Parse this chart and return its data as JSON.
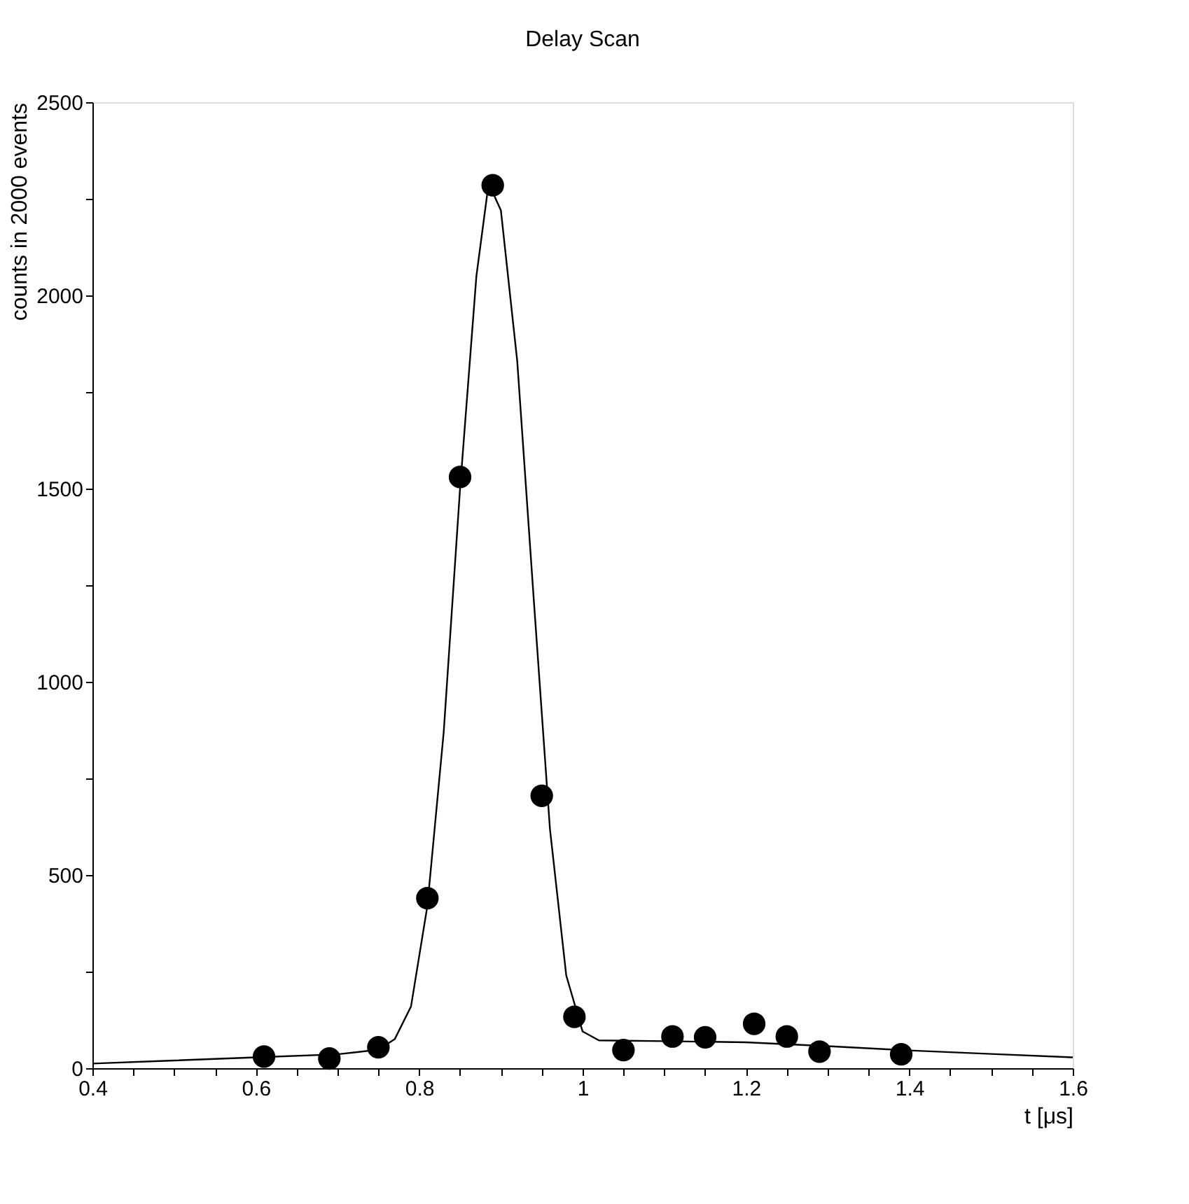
{
  "chart_data": {
    "type": "scatter",
    "title": "Delay Scan",
    "xlabel": "t [μs]",
    "ylabel": "counts in 2000 events",
    "xlim": [
      0.4,
      1.6
    ],
    "ylim": [
      0,
      2500
    ],
    "xticks": [
      0.4,
      {
        "value": 0.45,
        "label": null
      },
      {
        "value": 0.5,
        "label": null
      },
      {
        "value": 0.55,
        "label": null
      },
      0.6,
      {
        "value": 0.65,
        "label": null
      },
      {
        "value": 0.7,
        "label": null
      },
      {
        "value": 0.75,
        "label": null
      },
      0.8,
      {
        "value": 0.85,
        "label": null
      },
      {
        "value": 0.9,
        "label": null
      },
      {
        "value": 0.95,
        "label": null
      },
      1,
      {
        "value": 1.05,
        "label": null
      },
      {
        "value": 1.1,
        "label": null
      },
      {
        "value": 1.15,
        "label": null
      },
      1.2,
      {
        "value": 1.25,
        "label": null
      },
      {
        "value": 1.3,
        "label": null
      },
      {
        "value": 1.35,
        "label": null
      },
      1.4,
      {
        "value": 1.45,
        "label": null
      },
      {
        "value": 1.5,
        "label": null
      },
      {
        "value": 1.55,
        "label": null
      },
      1.6
    ],
    "yticks": [
      0,
      {
        "value": 250,
        "label": null
      },
      500,
      {
        "value": 750,
        "label": null
      },
      1000,
      {
        "value": 1250,
        "label": null
      },
      1500,
      {
        "value": 1750,
        "label": null
      },
      2000,
      {
        "value": 2250,
        "label": null
      },
      2500
    ],
    "grid": false,
    "series": [
      {
        "type": "line",
        "color": "#000000",
        "marker": "none",
        "line_style": "solid",
        "x": [
          0.4,
          0.5,
          0.6,
          0.7,
          0.75,
          0.77,
          0.79,
          0.81,
          0.83,
          0.85,
          0.87,
          0.885,
          0.9,
          0.92,
          0.94,
          0.96,
          0.98,
          1.0,
          1.02,
          1.1,
          1.2,
          1.3,
          1.4,
          1.5,
          1.6
        ],
        "values": [
          12,
          20,
          28,
          36,
          48,
          75,
          160,
          420,
          870,
          1500,
          2050,
          2290,
          2220,
          1830,
          1220,
          620,
          240,
          95,
          72,
          70,
          67,
          57,
          46,
          37,
          28
        ]
      },
      {
        "color": "#000000",
        "marker": "circle",
        "x": [
          0.61,
          0.69,
          0.75,
          0.81,
          0.85,
          0.89,
          0.95,
          0.99,
          1.05,
          1.11,
          1.15,
          1.21,
          1.25,
          1.29,
          1.39
        ],
        "values": [
          30,
          25,
          54,
          440,
          1530,
          2285,
          705,
          133,
          47,
          82,
          80,
          115,
          82,
          43,
          36
        ]
      }
    ]
  }
}
